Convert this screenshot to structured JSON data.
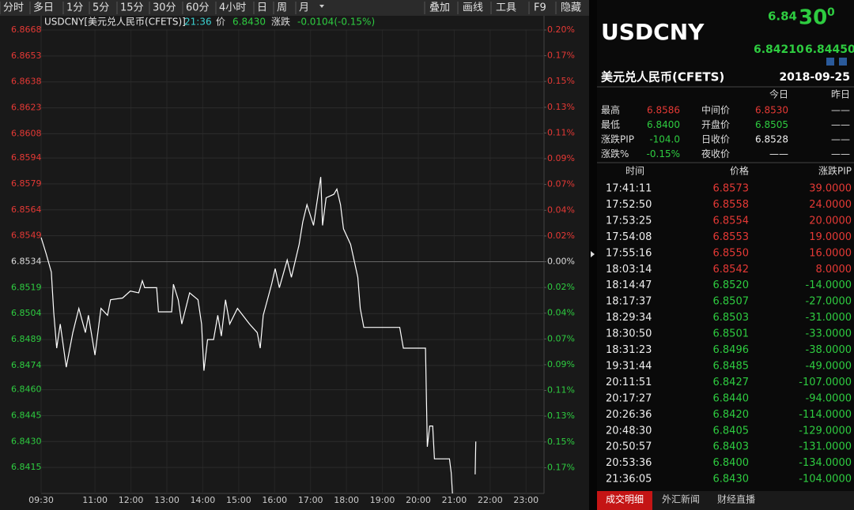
{
  "toolbar": {
    "tabs": [
      "分时",
      "多日",
      "1分",
      "5分",
      "15分",
      "30分",
      "60分",
      "4小时",
      "日",
      "周",
      "月"
    ],
    "buttons": [
      "叠加",
      "画线",
      "工具",
      "F9",
      "隐藏"
    ]
  },
  "quote_header": {
    "symbol": "USDCNY[美元兑人民币(CFETS)]",
    "time": "21:36",
    "price_label": "价",
    "price": "6.8430",
    "change_label": "涨跌",
    "change": "-0.0104(-0.15%)"
  },
  "chart_data": {
    "type": "line",
    "x": [
      "09:30",
      "09:38",
      "09:47",
      "09:51",
      "09:56",
      "10:02",
      "10:12",
      "10:23",
      "10:33",
      "10:44",
      "10:49",
      "11:00",
      "11:10",
      "11:21",
      "11:26",
      "11:46",
      "11:59",
      "12:13",
      "12:19",
      "12:23",
      "12:43",
      "12:46",
      "13:08",
      "13:11",
      "13:19",
      "13:25",
      "13:38",
      "13:52",
      "13:58",
      "14:02",
      "14:08",
      "14:18",
      "14:25",
      "14:31",
      "14:38",
      "14:45",
      "14:58",
      "15:18",
      "15:31",
      "15:36",
      "15:41",
      "15:55",
      "16:01",
      "16:08",
      "16:21",
      "16:28",
      "16:41",
      "16:47",
      "16:54",
      "17:05",
      "17:17",
      "17:20",
      "17:26",
      "17:39",
      "17:44",
      "17:50",
      "17:55",
      "18:07",
      "18:19",
      "18:23",
      "18:29",
      "19:29",
      "19:35",
      "20:12",
      "20:15",
      "20:19",
      "20:24",
      "20:27",
      "20:52",
      "20:55",
      "20:57",
      "21:10",
      "21:35",
      "21:36"
    ],
    "series": [
      {
        "color": "#ffffff",
        "values": [
          6.8548,
          6.8539,
          6.8528,
          6.8505,
          6.8484,
          6.8498,
          6.8473,
          6.8493,
          6.8507,
          6.8493,
          6.8503,
          6.848,
          6.8507,
          6.8503,
          6.8512,
          6.8513,
          6.8517,
          6.8516,
          6.8523,
          6.8519,
          6.8519,
          6.8505,
          6.8505,
          6.8521,
          6.8512,
          6.8498,
          6.8516,
          6.8512,
          6.8498,
          6.8471,
          6.8489,
          6.8489,
          6.8503,
          6.8491,
          6.8512,
          6.8498,
          6.8507,
          6.8498,
          6.8493,
          6.8484,
          6.8503,
          6.8521,
          6.853,
          6.8519,
          6.8535,
          6.8525,
          6.8544,
          6.8557,
          6.8567,
          6.8555,
          6.8583,
          6.8555,
          6.8571,
          6.8573,
          6.8576,
          6.8567,
          6.8553,
          6.8544,
          6.8525,
          6.8507,
          6.8496,
          6.8496,
          6.8484,
          6.8484,
          6.8427,
          6.8439,
          6.8439,
          6.842,
          6.842,
          6.8412,
          6.84,
          null,
          6.8411,
          6.843
        ]
      }
    ],
    "xlim": [
      "09:30",
      "23:30"
    ],
    "xticks": [
      "09:30",
      "11:00",
      "12:00",
      "13:00",
      "14:00",
      "15:00",
      "16:00",
      "17:00",
      "18:00",
      "19:00",
      "20:00",
      "21:00",
      "22:00",
      "23:00"
    ],
    "ylim": [
      6.84,
      6.8668
    ],
    "yticks": [
      6.8668,
      6.8653,
      6.8638,
      6.8623,
      6.8608,
      6.8594,
      6.8579,
      6.8564,
      6.8549,
      6.8534,
      6.8519,
      6.8504,
      6.8489,
      6.8474,
      {
        "value": 6.846,
        "label": "6.8460"
      },
      6.8445,
      {
        "value": 6.843,
        "label": "6.8430"
      },
      6.8415
    ],
    "y2lim": [
      -0.1955,
      0.1955
    ],
    "y2ticks": [
      {
        "value": 0.1955,
        "label": "0.20%"
      },
      {
        "value": 0.1738,
        "label": "0.17%"
      },
      {
        "value": 0.1521,
        "label": "0.15%"
      },
      {
        "value": 0.1303,
        "label": "0.13%"
      },
      {
        "value": 0.1086,
        "label": "0.11%"
      },
      {
        "value": 0.0869,
        "label": "0.09%"
      },
      {
        "value": 0.0652,
        "label": "0.07%"
      },
      {
        "value": 0.0434,
        "label": "0.04%"
      },
      {
        "value": 0.0217,
        "label": "0.02%"
      },
      {
        "value": 0,
        "label": "0.00%"
      },
      {
        "value": -0.0217,
        "label": "0.02%"
      },
      {
        "value": -0.0434,
        "label": "0.04%"
      },
      {
        "value": -0.0652,
        "label": "0.07%"
      },
      {
        "value": -0.0869,
        "label": "0.09%"
      },
      {
        "value": -0.1086,
        "label": "0.11%"
      },
      {
        "value": -0.1303,
        "label": "0.13%"
      },
      {
        "value": -0.1521,
        "label": "0.15%"
      },
      {
        "value": -0.1738,
        "label": "0.17%"
      }
    ],
    "grid": true
  },
  "panel": {
    "symbol": "USDCNY",
    "price_main": "6.84",
    "price_big": "30",
    "price_small": "0",
    "bid": "6.84210",
    "ask": "6.84450",
    "name": "美元兑人民币(CFETS)",
    "date": "2018-09-25",
    "stats": {
      "today": "今日",
      "yesterday": "昨日",
      "rows": [
        [
          "最高",
          "6.8586",
          "中间价",
          "6.8530",
          "——"
        ],
        [
          "最低",
          "6.8400",
          "开盘价",
          "6.8505",
          "——"
        ],
        [
          "涨跌PIP",
          "-104.0",
          "日收价",
          "6.8528",
          "——"
        ],
        [
          "涨跌%",
          "-0.15%",
          "夜收价",
          "——",
          "——"
        ]
      ]
    },
    "trades": {
      "header": [
        "时间",
        "价格",
        "涨跌PIP"
      ],
      "rows": [
        [
          "17:41:11",
          "6.8573",
          "39.0000"
        ],
        [
          "17:52:50",
          "6.8558",
          "24.0000"
        ],
        [
          "17:53:25",
          "6.8554",
          "20.0000"
        ],
        [
          "17:54:08",
          "6.8553",
          "19.0000"
        ],
        [
          "17:55:16",
          "6.8550",
          "16.0000"
        ],
        [
          "18:03:14",
          "6.8542",
          "8.0000"
        ],
        [
          "18:14:47",
          "6.8520",
          "-14.0000"
        ],
        [
          "18:17:37",
          "6.8507",
          "-27.0000"
        ],
        [
          "18:29:34",
          "6.8503",
          "-31.0000"
        ],
        [
          "18:30:50",
          "6.8501",
          "-33.0000"
        ],
        [
          "18:31:23",
          "6.8496",
          "-38.0000"
        ],
        [
          "19:31:44",
          "6.8485",
          "-49.0000"
        ],
        [
          "20:11:51",
          "6.8427",
          "-107.0000"
        ],
        [
          "20:17:27",
          "6.8440",
          "-94.0000"
        ],
        [
          "20:26:36",
          "6.8420",
          "-114.0000"
        ],
        [
          "20:48:30",
          "6.8405",
          "-129.0000"
        ],
        [
          "20:50:57",
          "6.8403",
          "-131.0000"
        ],
        [
          "20:53:36",
          "6.8400",
          "-134.0000"
        ],
        [
          "21:36:05",
          "6.8430",
          "-104.0000"
        ]
      ]
    },
    "tabs": [
      "成交明细",
      "外汇新闻",
      "财经直播"
    ]
  }
}
